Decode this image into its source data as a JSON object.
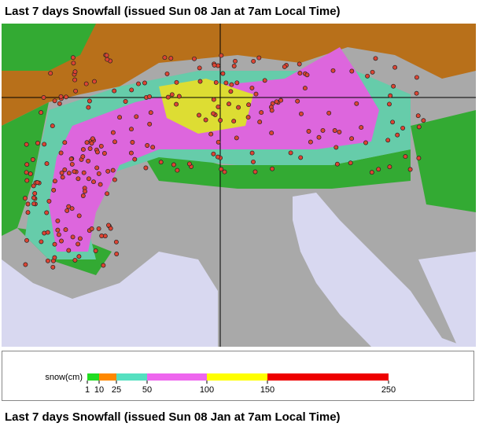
{
  "header": {
    "title": "Last 7 days Snowfall (issued Sun 08 Jan at 7am Local Time)"
  },
  "legend": {
    "label": "snow(cm)",
    "ticks": [
      1,
      10,
      25,
      50,
      100,
      150,
      250
    ],
    "colors": [
      "#22dd22",
      "#ff8800",
      "#55e0c0",
      "#ee66ee",
      "#ffff00",
      "#ee0000"
    ]
  },
  "footer": {
    "title": "Last 7 days Snowfall (issued Sun 08 Jan at 7am Local Time)"
  }
}
